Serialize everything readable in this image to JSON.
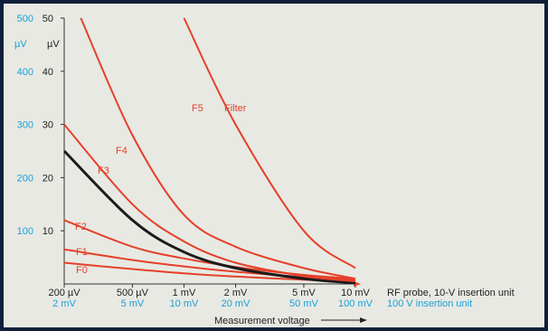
{
  "chart_data": {
    "type": "line",
    "title": "",
    "left_axis_outer": {
      "unit": "µV",
      "ticks": [
        100,
        200,
        300,
        400,
        500
      ],
      "color": "#1aa0d8"
    },
    "left_axis_inner": {
      "unit": "µV",
      "ticks": [
        10,
        20,
        30,
        40,
        50
      ],
      "ylim": [
        0,
        50
      ],
      "color": "#222222"
    },
    "x_axis": {
      "ticks_row1": [
        "200 µV",
        "500 µV",
        "1 mV",
        "2 mV",
        "5 mV",
        "10 mV"
      ],
      "ticks_row2": [
        "2 mV",
        "5 mV",
        "10 mV",
        "20 mV",
        "50 mV",
        "100 mV"
      ],
      "row1_caption": "RF probe, 10-V insertion unit",
      "row2_caption": "100 V insertion unit",
      "xlabel": "Measurement voltage",
      "scale": "log"
    },
    "series": [
      {
        "name": "F0",
        "color": "#e5402a",
        "x": [
          0.2,
          0.5,
          1,
          2,
          5,
          10
        ],
        "y": [
          4,
          2.8,
          2,
          1.4,
          0.8,
          0.5
        ]
      },
      {
        "name": "F1",
        "color": "#e5402a",
        "x": [
          0.2,
          0.5,
          1,
          2,
          5,
          10
        ],
        "y": [
          6.5,
          4.5,
          3.3,
          2.3,
          1.3,
          0.8
        ]
      },
      {
        "name": "F2",
        "color": "#e5402a",
        "x": [
          0.2,
          0.5,
          1,
          2,
          5,
          10
        ],
        "y": [
          12,
          7,
          4.8,
          3.2,
          1.7,
          1
        ]
      },
      {
        "color": "#1a1a1a",
        "x": [
          0.2,
          0.5,
          1,
          2,
          5,
          10
        ],
        "y": [
          25,
          12,
          6,
          3,
          1,
          0.2
        ]
      },
      {
        "name": "F3",
        "color": "#e5402a",
        "x": [
          0.2,
          0.5,
          1,
          2,
          5,
          10
        ],
        "y": [
          30,
          15,
          8,
          4,
          1.5,
          0.5
        ]
      },
      {
        "name": "F4",
        "color": "#e5402a",
        "x": [
          0.25,
          0.5,
          1,
          2,
          5,
          10
        ],
        "y": [
          50,
          28,
          13,
          7,
          3,
          1
        ]
      },
      {
        "name": "F5",
        "color": "#e5402a",
        "x": [
          1,
          2,
          5,
          10
        ],
        "y": [
          50,
          30,
          10,
          3
        ]
      }
    ],
    "annotations": [
      "Filter"
    ],
    "grid": false
  }
}
